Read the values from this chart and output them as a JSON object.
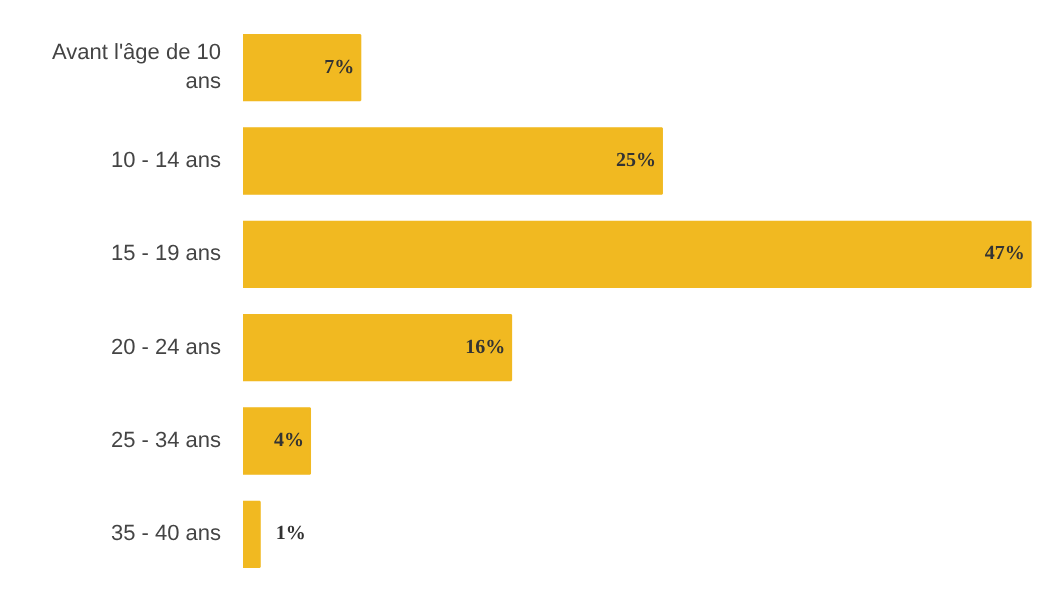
{
  "chart_data": {
    "type": "bar",
    "orientation": "horizontal",
    "categories": [
      "Avant l'âge de 10 ans",
      "10 - 14 ans",
      "15 - 19 ans",
      "20 - 24 ans",
      "25 - 34 ans",
      "35 - 40 ans"
    ],
    "values": [
      7,
      25,
      47,
      16,
      4,
      1
    ],
    "color": "#f1b921",
    "value_labels": [
      "7%",
      "25%",
      "47%",
      "16%",
      "4%",
      "1%"
    ],
    "grid": false
  }
}
